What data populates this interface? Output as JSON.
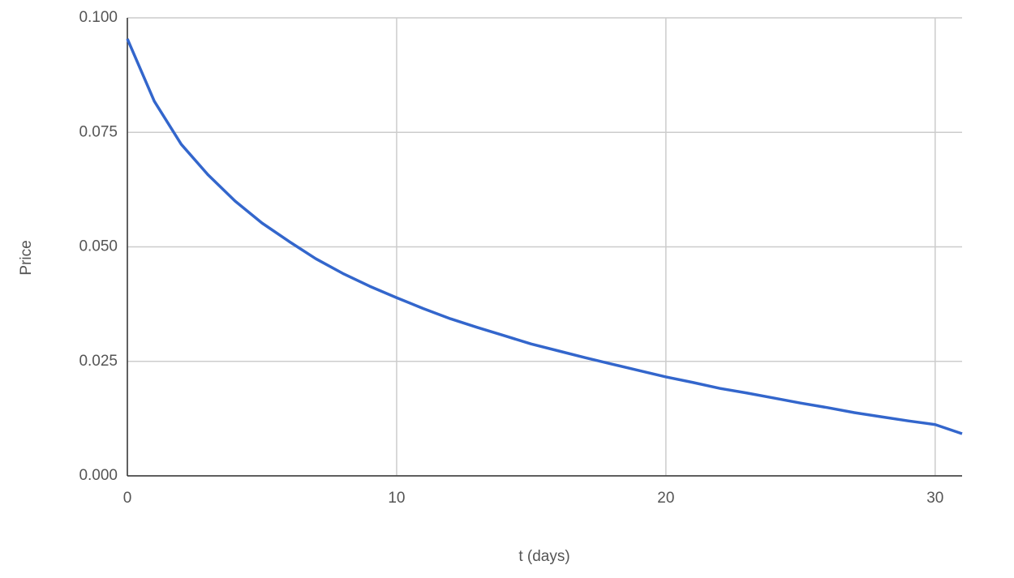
{
  "chart_data": {
    "type": "line",
    "x_label": "t (days)",
    "y_label": "Price",
    "x": [
      0,
      1,
      2,
      3,
      4,
      5,
      6,
      7,
      8,
      9,
      10,
      11,
      12,
      13,
      14,
      15,
      16,
      17,
      18,
      19,
      20,
      21,
      22,
      23,
      24,
      25,
      26,
      27,
      28,
      29,
      30,
      31
    ],
    "series": [
      {
        "color": "#3366cc",
        "values": [
          0.0954,
          0.0818,
          0.0724,
          0.0657,
          0.06,
          0.0552,
          0.0512,
          0.0474,
          0.0442,
          0.0414,
          0.0389,
          0.0365,
          0.0343,
          0.0324,
          0.0306,
          0.0288,
          0.0273,
          0.0258,
          0.0244,
          0.023,
          0.0216,
          0.0204,
          0.0191,
          0.0181,
          0.017,
          0.0159,
          0.0149,
          0.0138,
          0.0129,
          0.012,
          0.0112,
          0.0092
        ]
      }
    ],
    "xlim": [
      0,
      31
    ],
    "xticks": [
      0,
      10,
      20,
      30
    ],
    "ylim": [
      0,
      0.1
    ],
    "yticks": [
      {
        "value": 0,
        "label": "0.000"
      },
      {
        "value": 0.025,
        "label": "0.025"
      },
      {
        "value": 0.05,
        "label": "0.050"
      },
      {
        "value": 0.075,
        "label": "0.075"
      },
      {
        "value": 0.1,
        "label": "0.100"
      }
    ],
    "grid": true
  }
}
